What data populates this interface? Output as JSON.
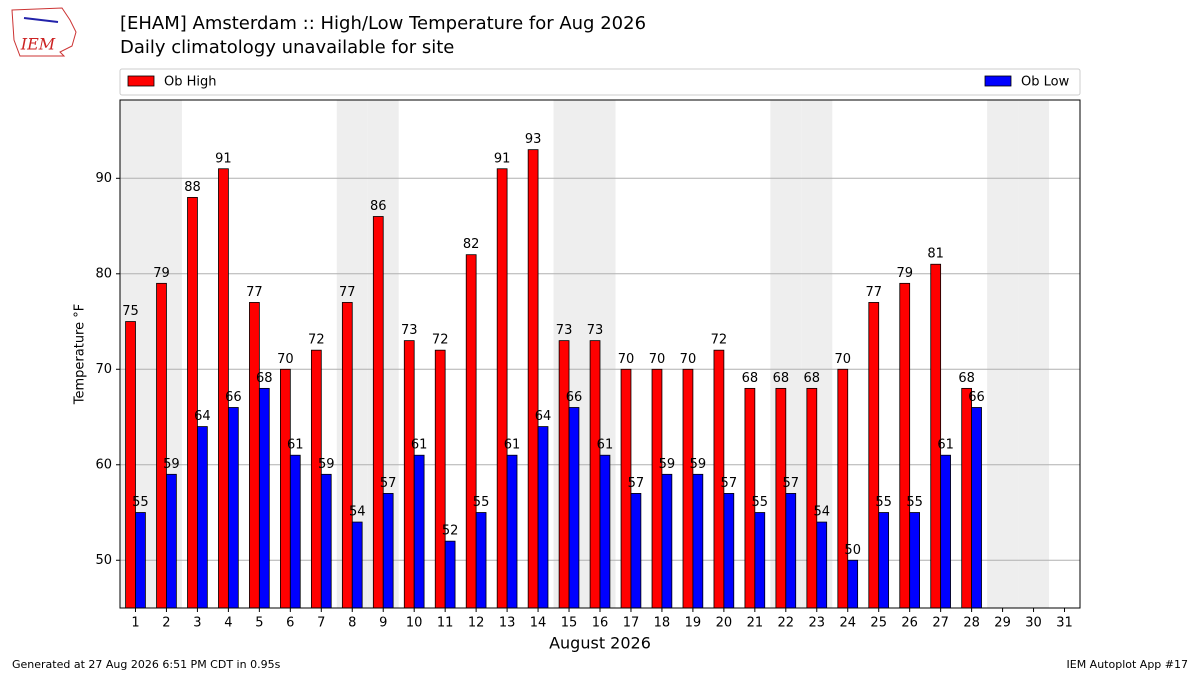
{
  "logo_text": "IEM",
  "chart_data": {
    "type": "bar",
    "title": "[EHAM] Amsterdam :: High/Low Temperature for Aug 2026",
    "subtitle": "Daily climatology unavailable for site",
    "y_label": "Temperature °F",
    "x_label": "August 2026",
    "footer_left": "Generated at 27 Aug 2026 6:51 PM CDT in 0.95s",
    "footer_right": "IEM Autoplot App #17",
    "categories": [
      "1",
      "2",
      "3",
      "4",
      "5",
      "6",
      "7",
      "8",
      "9",
      "10",
      "11",
      "12",
      "13",
      "14",
      "15",
      "16",
      "17",
      "18",
      "19",
      "20",
      "21",
      "22",
      "23",
      "24",
      "25",
      "26",
      "27",
      "28",
      "29",
      "30",
      "31"
    ],
    "series": [
      {
        "name": "Ob High",
        "color": "#ff0000",
        "values": [
          75,
          79,
          88,
          91,
          77,
          70,
          72,
          77,
          86,
          73,
          72,
          82,
          91,
          93,
          73,
          73,
          70,
          70,
          70,
          72,
          68,
          68,
          68,
          70,
          77,
          79,
          81,
          68,
          null,
          null,
          null
        ]
      },
      {
        "name": "Ob Low",
        "color": "#0000ff",
        "values": [
          55,
          59,
          64,
          66,
          68,
          61,
          59,
          54,
          57,
          61,
          52,
          55,
          61,
          64,
          66,
          61,
          57,
          59,
          59,
          57,
          55,
          57,
          54,
          50,
          55,
          55,
          61,
          66,
          null,
          null,
          null
        ]
      }
    ],
    "shaded_days": [
      1,
      2,
      8,
      9,
      15,
      16,
      22,
      23,
      29,
      30
    ],
    "shade_color": "#eeeeee",
    "ylim": [
      45,
      98.2
    ],
    "yticks": [
      50,
      60,
      70,
      80,
      90
    ],
    "grid": true,
    "legend": "top"
  }
}
